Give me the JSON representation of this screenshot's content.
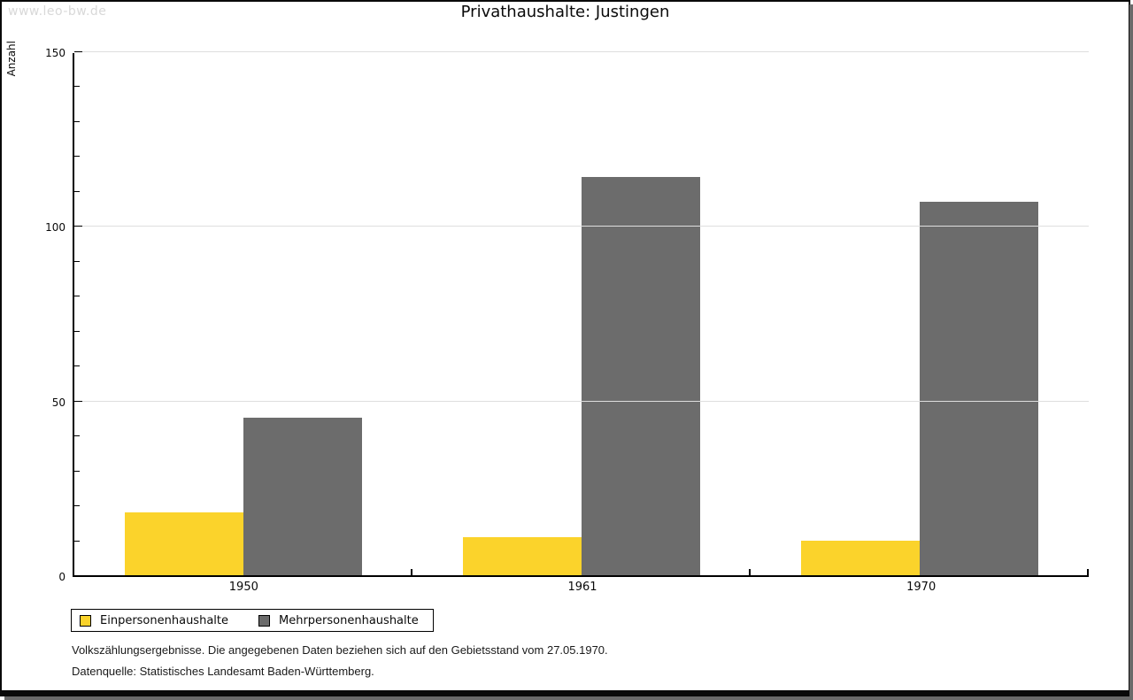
{
  "watermark": "www.leo-bw.de",
  "title": "Privathaushalte: Justingen",
  "chart_data": {
    "type": "bar",
    "title": "Privathaushalte: Justingen",
    "xlabel": "",
    "ylabel": "Anzahl",
    "categories": [
      "1950",
      "1961",
      "1970"
    ],
    "series": [
      {
        "name": "Einpersonenhaushalte",
        "color": "#fbd32b",
        "values": [
          18,
          11,
          10
        ]
      },
      {
        "name": "Mehrpersonenhaushalte",
        "color": "#6c6c6c",
        "values": [
          45,
          114,
          107
        ]
      }
    ],
    "ylim": [
      0,
      150
    ],
    "yticks": [
      0,
      50,
      100,
      150
    ],
    "ytick_minor_step": 10,
    "grid": "horizontal major gridlines, light gray",
    "legend_position": "bottom-left"
  },
  "legend": {
    "items": [
      {
        "label": "Einpersonenhaushalte",
        "color": "#fbd32b"
      },
      {
        "label": "Mehrpersonenhaushalte",
        "color": "#6c6c6c"
      }
    ]
  },
  "footnotes": {
    "line1": "Volkszählungsergebnisse. Die angegebenen Daten beziehen sich auf den Gebietsstand vom 27.05.1970.",
    "line2": "Datenquelle: Statistisches Landesamt Baden-Württemberg."
  },
  "colors": {
    "series1": "#fbd32b",
    "series2": "#6c6c6c",
    "gridline": "#dedede",
    "axis": "#000000",
    "watermark_text": "#d8d8d8",
    "frame_border": "#0a0a0a",
    "frame_shadow": "#6a6a6a"
  }
}
